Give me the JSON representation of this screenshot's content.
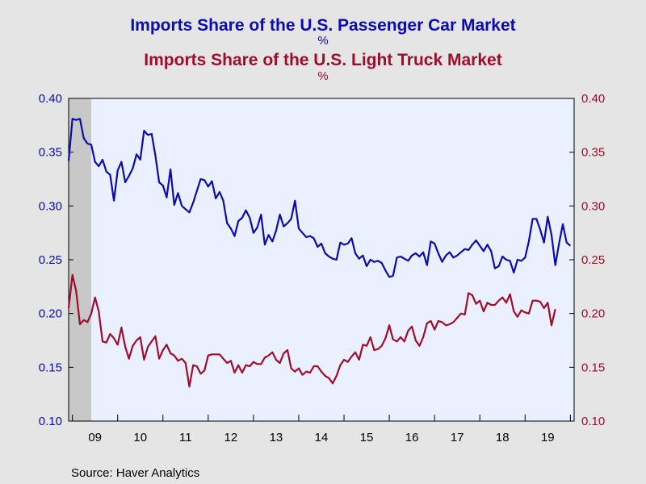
{
  "chart_data": {
    "type": "line",
    "titles": [
      {
        "text": "Imports Share of the U.S. Passenger Car Market",
        "unit": "%",
        "color": "#0b0bb0"
      },
      {
        "text": "Imports Share of the U.S. Light Truck Market",
        "unit": "%",
        "color": "#a00c2c"
      }
    ],
    "source": "Source:  Haver Analytics",
    "x_tick_labels": [
      "09",
      "10",
      "11",
      "12",
      "13",
      "14",
      "15",
      "16",
      "17",
      "18",
      "19"
    ],
    "y_left": {
      "min": 0.1,
      "max": 0.4,
      "ticks": [
        "0.10",
        "0.15",
        "0.20",
        "0.25",
        "0.30",
        "0.35",
        "0.40"
      ],
      "color": "#0b0bb0"
    },
    "y_right": {
      "min": 0.1,
      "max": 0.4,
      "ticks": [
        "0.10",
        "0.15",
        "0.20",
        "0.25",
        "0.30",
        "0.35",
        "0.40"
      ],
      "color": "#a00c2c"
    },
    "recession_shade": {
      "start_year": 2008.917,
      "end_year": 2009.417,
      "color": "#c8c8c8"
    },
    "grid": false,
    "plot_background": "#eaf0ff",
    "series": [
      {
        "axis": "left",
        "color": "#0b0bb0",
        "points": [
          [
            2008.917,
            0.342
          ],
          [
            2009.0,
            0.381
          ],
          [
            2009.083,
            0.38
          ],
          [
            2009.167,
            0.381
          ],
          [
            2009.25,
            0.363
          ],
          [
            2009.333,
            0.358
          ],
          [
            2009.417,
            0.357
          ],
          [
            2009.5,
            0.341
          ],
          [
            2009.583,
            0.337
          ],
          [
            2009.667,
            0.343
          ],
          [
            2009.75,
            0.332
          ],
          [
            2009.833,
            0.329
          ],
          [
            2009.917,
            0.305
          ],
          [
            2010.0,
            0.333
          ],
          [
            2010.083,
            0.341
          ],
          [
            2010.167,
            0.322
          ],
          [
            2010.25,
            0.328
          ],
          [
            2010.333,
            0.335
          ],
          [
            2010.417,
            0.348
          ],
          [
            2010.5,
            0.343
          ],
          [
            2010.583,
            0.37
          ],
          [
            2010.667,
            0.366
          ],
          [
            2010.75,
            0.367
          ],
          [
            2010.833,
            0.347
          ],
          [
            2010.917,
            0.322
          ],
          [
            2011.0,
            0.319
          ],
          [
            2011.083,
            0.308
          ],
          [
            2011.167,
            0.334
          ],
          [
            2011.25,
            0.301
          ],
          [
            2011.333,
            0.312
          ],
          [
            2011.417,
            0.3
          ],
          [
            2011.5,
            0.297
          ],
          [
            2011.583,
            0.294
          ],
          [
            2011.667,
            0.303
          ],
          [
            2011.75,
            0.314
          ],
          [
            2011.833,
            0.325
          ],
          [
            2011.917,
            0.324
          ],
          [
            2012.0,
            0.318
          ],
          [
            2012.083,
            0.323
          ],
          [
            2012.167,
            0.307
          ],
          [
            2012.25,
            0.313
          ],
          [
            2012.333,
            0.305
          ],
          [
            2012.417,
            0.284
          ],
          [
            2012.5,
            0.279
          ],
          [
            2012.583,
            0.272
          ],
          [
            2012.667,
            0.286
          ],
          [
            2012.75,
            0.289
          ],
          [
            2012.833,
            0.296
          ],
          [
            2012.917,
            0.289
          ],
          [
            2013.0,
            0.275
          ],
          [
            2013.083,
            0.28
          ],
          [
            2013.167,
            0.292
          ],
          [
            2013.25,
            0.264
          ],
          [
            2013.333,
            0.273
          ],
          [
            2013.417,
            0.267
          ],
          [
            2013.5,
            0.277
          ],
          [
            2013.583,
            0.292
          ],
          [
            2013.667,
            0.281
          ],
          [
            2013.75,
            0.284
          ],
          [
            2013.833,
            0.288
          ],
          [
            2013.917,
            0.305
          ],
          [
            2014.0,
            0.279
          ],
          [
            2014.083,
            0.275
          ],
          [
            2014.167,
            0.271
          ],
          [
            2014.25,
            0.272
          ],
          [
            2014.333,
            0.27
          ],
          [
            2014.417,
            0.262
          ],
          [
            2014.5,
            0.265
          ],
          [
            2014.583,
            0.256
          ],
          [
            2014.667,
            0.253
          ],
          [
            2014.75,
            0.251
          ],
          [
            2014.833,
            0.25
          ],
          [
            2014.917,
            0.266
          ],
          [
            2015.0,
            0.264
          ],
          [
            2015.083,
            0.265
          ],
          [
            2015.167,
            0.27
          ],
          [
            2015.25,
            0.256
          ],
          [
            2015.333,
            0.251
          ],
          [
            2015.417,
            0.254
          ],
          [
            2015.5,
            0.244
          ],
          [
            2015.583,
            0.25
          ],
          [
            2015.667,
            0.248
          ],
          [
            2015.75,
            0.249
          ],
          [
            2015.833,
            0.247
          ],
          [
            2015.917,
            0.24
          ],
          [
            2016.0,
            0.234
          ],
          [
            2016.083,
            0.235
          ],
          [
            2016.167,
            0.252
          ],
          [
            2016.25,
            0.253
          ],
          [
            2016.333,
            0.251
          ],
          [
            2016.417,
            0.249
          ],
          [
            2016.5,
            0.254
          ],
          [
            2016.583,
            0.256
          ],
          [
            2016.667,
            0.253
          ],
          [
            2016.75,
            0.257
          ],
          [
            2016.833,
            0.245
          ],
          [
            2016.917,
            0.267
          ],
          [
            2017.0,
            0.265
          ],
          [
            2017.083,
            0.256
          ],
          [
            2017.167,
            0.248
          ],
          [
            2017.25,
            0.254
          ],
          [
            2017.333,
            0.257
          ],
          [
            2017.417,
            0.252
          ],
          [
            2017.5,
            0.254
          ],
          [
            2017.583,
            0.257
          ],
          [
            2017.667,
            0.26
          ],
          [
            2017.75,
            0.259
          ],
          [
            2017.833,
            0.264
          ],
          [
            2017.917,
            0.268
          ],
          [
            2018.0,
            0.263
          ],
          [
            2018.083,
            0.258
          ],
          [
            2018.167,
            0.264
          ],
          [
            2018.25,
            0.258
          ],
          [
            2018.333,
            0.242
          ],
          [
            2018.417,
            0.244
          ],
          [
            2018.5,
            0.253
          ],
          [
            2018.583,
            0.25
          ],
          [
            2018.667,
            0.249
          ],
          [
            2018.75,
            0.238
          ],
          [
            2018.833,
            0.25
          ],
          [
            2018.917,
            0.249
          ],
          [
            2019.0,
            0.252
          ],
          [
            2019.083,
            0.267
          ],
          [
            2019.167,
            0.288
          ],
          [
            2019.25,
            0.288
          ],
          [
            2019.333,
            0.278
          ],
          [
            2019.417,
            0.266
          ],
          [
            2019.5,
            0.29
          ],
          [
            2019.583,
            0.273
          ],
          [
            2019.667,
            0.245
          ],
          [
            2019.75,
            0.265
          ],
          [
            2019.833,
            0.283
          ],
          [
            2019.917,
            0.266
          ],
          [
            2020.0,
            0.263
          ]
        ]
      },
      {
        "axis": "right",
        "color": "#a00c2c",
        "points": [
          [
            2008.917,
            0.205
          ],
          [
            2009.0,
            0.236
          ],
          [
            2009.083,
            0.221
          ],
          [
            2009.167,
            0.19
          ],
          [
            2009.25,
            0.194
          ],
          [
            2009.333,
            0.192
          ],
          [
            2009.417,
            0.2
          ],
          [
            2009.5,
            0.215
          ],
          [
            2009.583,
            0.202
          ],
          [
            2009.667,
            0.174
          ],
          [
            2009.75,
            0.173
          ],
          [
            2009.833,
            0.181
          ],
          [
            2009.917,
            0.177
          ],
          [
            2010.0,
            0.171
          ],
          [
            2010.083,
            0.187
          ],
          [
            2010.167,
            0.169
          ],
          [
            2010.25,
            0.158
          ],
          [
            2010.333,
            0.17
          ],
          [
            2010.417,
            0.175
          ],
          [
            2010.5,
            0.178
          ],
          [
            2010.583,
            0.157
          ],
          [
            2010.667,
            0.169
          ],
          [
            2010.75,
            0.174
          ],
          [
            2010.833,
            0.179
          ],
          [
            2010.917,
            0.158
          ],
          [
            2011.0,
            0.166
          ],
          [
            2011.083,
            0.171
          ],
          [
            2011.167,
            0.163
          ],
          [
            2011.25,
            0.161
          ],
          [
            2011.333,
            0.156
          ],
          [
            2011.417,
            0.158
          ],
          [
            2011.5,
            0.154
          ],
          [
            2011.583,
            0.132
          ],
          [
            2011.667,
            0.152
          ],
          [
            2011.75,
            0.151
          ],
          [
            2011.833,
            0.144
          ],
          [
            2011.917,
            0.147
          ],
          [
            2012.0,
            0.161
          ],
          [
            2012.083,
            0.162
          ],
          [
            2012.167,
            0.162
          ],
          [
            2012.25,
            0.162
          ],
          [
            2012.333,
            0.158
          ],
          [
            2012.417,
            0.154
          ],
          [
            2012.5,
            0.156
          ],
          [
            2012.583,
            0.145
          ],
          [
            2012.667,
            0.152
          ],
          [
            2012.75,
            0.145
          ],
          [
            2012.833,
            0.152
          ],
          [
            2012.917,
            0.151
          ],
          [
            2013.0,
            0.155
          ],
          [
            2013.083,
            0.153
          ],
          [
            2013.167,
            0.153
          ],
          [
            2013.25,
            0.159
          ],
          [
            2013.333,
            0.161
          ],
          [
            2013.417,
            0.164
          ],
          [
            2013.5,
            0.157
          ],
          [
            2013.583,
            0.154
          ],
          [
            2013.667,
            0.163
          ],
          [
            2013.75,
            0.166
          ],
          [
            2013.833,
            0.149
          ],
          [
            2013.917,
            0.146
          ],
          [
            2014.0,
            0.149
          ],
          [
            2014.083,
            0.143
          ],
          [
            2014.167,
            0.146
          ],
          [
            2014.25,
            0.145
          ],
          [
            2014.333,
            0.151
          ],
          [
            2014.417,
            0.151
          ],
          [
            2014.5,
            0.146
          ],
          [
            2014.583,
            0.142
          ],
          [
            2014.667,
            0.14
          ],
          [
            2014.75,
            0.135
          ],
          [
            2014.833,
            0.142
          ],
          [
            2014.917,
            0.152
          ],
          [
            2015.0,
            0.157
          ],
          [
            2015.083,
            0.155
          ],
          [
            2015.167,
            0.16
          ],
          [
            2015.25,
            0.164
          ],
          [
            2015.333,
            0.157
          ],
          [
            2015.417,
            0.171
          ],
          [
            2015.5,
            0.17
          ],
          [
            2015.583,
            0.178
          ],
          [
            2015.667,
            0.166
          ],
          [
            2015.75,
            0.167
          ],
          [
            2015.833,
            0.17
          ],
          [
            2015.917,
            0.177
          ],
          [
            2016.0,
            0.189
          ],
          [
            2016.083,
            0.176
          ],
          [
            2016.167,
            0.174
          ],
          [
            2016.25,
            0.178
          ],
          [
            2016.333,
            0.174
          ],
          [
            2016.417,
            0.184
          ],
          [
            2016.5,
            0.188
          ],
          [
            2016.583,
            0.175
          ],
          [
            2016.667,
            0.17
          ],
          [
            2016.75,
            0.178
          ],
          [
            2016.833,
            0.191
          ],
          [
            2016.917,
            0.193
          ],
          [
            2017.0,
            0.185
          ],
          [
            2017.083,
            0.193
          ],
          [
            2017.167,
            0.192
          ],
          [
            2017.25,
            0.189
          ],
          [
            2017.333,
            0.19
          ],
          [
            2017.417,
            0.192
          ],
          [
            2017.5,
            0.196
          ],
          [
            2017.583,
            0.2
          ],
          [
            2017.667,
            0.199
          ],
          [
            2017.75,
            0.219
          ],
          [
            2017.833,
            0.217
          ],
          [
            2017.917,
            0.209
          ],
          [
            2018.0,
            0.212
          ],
          [
            2018.083,
            0.202
          ],
          [
            2018.167,
            0.21
          ],
          [
            2018.25,
            0.208
          ],
          [
            2018.333,
            0.208
          ],
          [
            2018.417,
            0.212
          ],
          [
            2018.5,
            0.215
          ],
          [
            2018.583,
            0.21
          ],
          [
            2018.667,
            0.218
          ],
          [
            2018.75,
            0.202
          ],
          [
            2018.833,
            0.197
          ],
          [
            2018.917,
            0.203
          ],
          [
            2019.0,
            0.201
          ],
          [
            2019.083,
            0.2
          ],
          [
            2019.167,
            0.212
          ],
          [
            2019.25,
            0.212
          ],
          [
            2019.333,
            0.211
          ],
          [
            2019.417,
            0.205
          ],
          [
            2019.5,
            0.21
          ],
          [
            2019.583,
            0.189
          ],
          [
            2019.667,
            0.204
          ]
        ]
      }
    ]
  }
}
